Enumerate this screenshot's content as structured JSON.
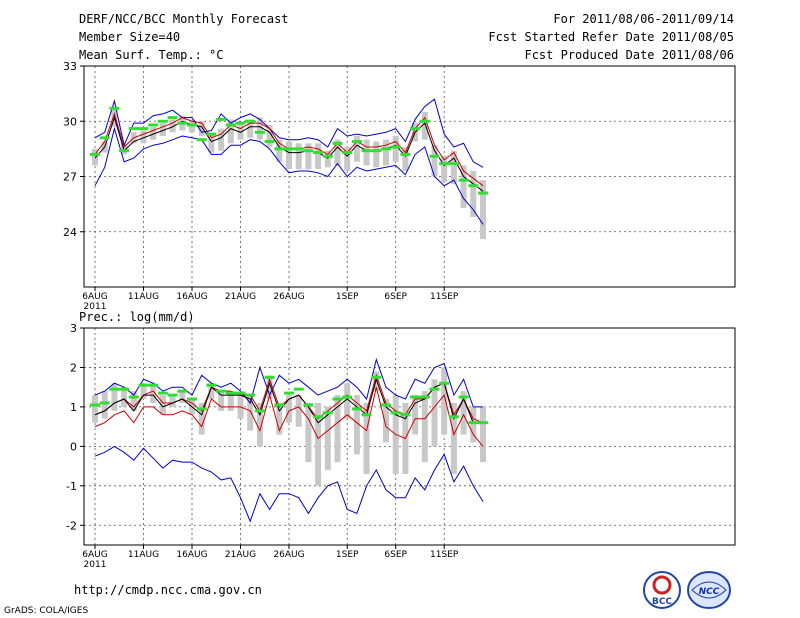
{
  "header": {
    "title": "DERF/NCC/BCC Monthly Forecast",
    "member_size": "Member Size=40",
    "variable": "Mean Surf. Temp.: °C",
    "period": "For 2011/08/06-2011/09/14",
    "started": "Fcst Started Refer Date 2011/08/05",
    "produced": "Fcst Produced Date 2011/08/06"
  },
  "footer": {
    "url": "http://cmdp.ncc.cma.gov.cn",
    "credit": "GrADS: COLA/IGES"
  },
  "logos": {
    "bcc": "BCC",
    "ncc": "NCC"
  },
  "colors": {
    "ensemble_max_min": "#0000cc",
    "ensemble_mean": "#000000",
    "control": "#cc0000",
    "spread_bar": "#c8c8c8",
    "observation": "#33dd33"
  },
  "chart_data": [
    {
      "type": "line",
      "title": "Mean Surf. Temp.: °C",
      "xlabel": "",
      "ylabel": "",
      "ylim": [
        21,
        33
      ],
      "yticks": [
        24,
        27,
        30,
        33
      ],
      "ytick_labels": [
        "24",
        "27",
        "30",
        "33"
      ],
      "xtick_days": [
        0,
        5,
        10,
        15,
        20,
        26,
        31,
        36
      ],
      "xtick_labels": [
        "6AUG\n2011",
        "11AUG",
        "16AUG",
        "21AUG",
        "26AUG",
        "1SEP",
        "6SEP",
        "11SEP"
      ],
      "grid": true,
      "x_days": 40,
      "series": [
        {
          "name": "ensemble max",
          "values": [
            29.1,
            29.4,
            31.1,
            28.7,
            29.9,
            29.9,
            30.3,
            30.4,
            30.6,
            30.2,
            30.2,
            29.4,
            29.5,
            30.4,
            29.9,
            30.2,
            30.4,
            30.1,
            29.6,
            29.1,
            29.0,
            29.0,
            29.1,
            29.0,
            28.6,
            29.6,
            29.2,
            29.3,
            29.2,
            29.3,
            29.4,
            29.6,
            28.9,
            30.1,
            30.8,
            31.2,
            29.3,
            28.6,
            28.8,
            27.8,
            27.5
          ]
        },
        {
          "name": "ensemble mean",
          "values": [
            28.0,
            28.6,
            30.2,
            28.4,
            28.9,
            29.1,
            29.3,
            29.5,
            29.7,
            30.0,
            29.8,
            29.7,
            28.9,
            29.1,
            29.6,
            29.4,
            29.7,
            29.7,
            29.4,
            28.6,
            28.3,
            28.3,
            28.4,
            28.3,
            28.0,
            28.6,
            28.1,
            28.7,
            28.4,
            28.4,
            28.5,
            28.7,
            28.1,
            29.4,
            29.9,
            28.4,
            27.6,
            28.0,
            27.0,
            26.6,
            26.2
          ]
        },
        {
          "name": "control",
          "values": [
            28.2,
            28.9,
            30.4,
            28.6,
            29.1,
            29.3,
            29.5,
            29.7,
            29.9,
            30.2,
            30.0,
            29.9,
            29.1,
            29.3,
            29.8,
            29.6,
            29.9,
            29.9,
            29.6,
            28.8,
            28.5,
            28.5,
            28.6,
            28.5,
            28.2,
            28.8,
            28.3,
            28.9,
            28.6,
            28.6,
            28.7,
            28.9,
            28.3,
            29.6,
            30.2,
            28.7,
            27.9,
            28.3,
            27.3,
            26.9,
            26.5
          ]
        },
        {
          "name": "ensemble min",
          "values": [
            26.5,
            27.5,
            29.6,
            27.8,
            28.0,
            28.5,
            28.7,
            28.8,
            29.0,
            29.2,
            29.1,
            29.0,
            28.2,
            28.2,
            28.7,
            28.7,
            29.0,
            28.9,
            28.5,
            27.8,
            27.2,
            27.3,
            27.3,
            27.2,
            27.0,
            27.7,
            27.0,
            27.5,
            27.3,
            27.4,
            27.5,
            27.6,
            27.1,
            28.2,
            28.6,
            27.0,
            26.5,
            26.8,
            25.8,
            25.2,
            24.4
          ]
        },
        {
          "name": "spread bar low",
          "values": [
            27.6,
            28.3,
            29.7,
            28.2,
            28.8,
            28.8,
            29.0,
            29.2,
            29.4,
            29.5,
            29.4,
            29.2,
            28.3,
            28.4,
            28.8,
            29.0,
            29.1,
            29.0,
            28.6,
            27.8,
            27.4,
            27.4,
            27.4,
            27.4,
            27.5,
            27.6,
            27.3,
            27.8,
            27.6,
            27.5,
            27.6,
            27.8,
            27.3,
            28.9,
            29.0,
            27.0,
            26.7,
            26.6,
            25.3,
            24.8,
            23.6
          ]
        },
        {
          "name": "spread bar high",
          "values": [
            28.5,
            28.9,
            30.8,
            28.8,
            29.4,
            29.5,
            29.7,
            29.9,
            30.1,
            30.3,
            30.1,
            30.0,
            29.3,
            29.6,
            30.1,
            29.9,
            30.1,
            30.2,
            29.8,
            29.0,
            28.9,
            28.8,
            28.8,
            28.8,
            28.4,
            29.0,
            28.6,
            29.2,
            29.0,
            28.9,
            29.0,
            29.2,
            28.6,
            29.9,
            30.5,
            28.7,
            28.1,
            28.4,
            27.6,
            27.3,
            26.8
          ]
        },
        {
          "name": "observation",
          "values": [
            28.2,
            29.1,
            30.7,
            28.4,
            29.6,
            29.6,
            29.8,
            30.0,
            30.2,
            29.9,
            29.8,
            29.0,
            29.3,
            30.1,
            29.8,
            29.9,
            30.0,
            29.4,
            28.9,
            28.5,
            28.5,
            28.5,
            28.4,
            28.3,
            28.1,
            28.8,
            28.3,
            28.9,
            28.4,
            28.4,
            28.5,
            28.6,
            28.2,
            29.6,
            30.0,
            28.1,
            27.7,
            27.7,
            26.8,
            26.5,
            26.1
          ]
        }
      ]
    },
    {
      "type": "line",
      "title": "Prec.: log(mm/d)",
      "xlabel": "",
      "ylabel": "",
      "ylim": [
        -2.5,
        3
      ],
      "yticks": [
        -2,
        -1,
        0,
        1,
        2,
        3
      ],
      "ytick_labels": [
        "-2",
        "-1",
        "0",
        "1",
        "2",
        "3"
      ],
      "xtick_days": [
        0,
        5,
        10,
        15,
        20,
        26,
        31,
        36
      ],
      "xtick_labels": [
        "6AUG\n2011",
        "11AUG",
        "16AUG",
        "21AUG",
        "26AUG",
        "1SEP",
        "6SEP",
        "11SEP"
      ],
      "grid": true,
      "x_days": 40,
      "series": [
        {
          "name": "ensemble max",
          "values": [
            1.3,
            1.4,
            1.6,
            1.5,
            1.3,
            1.7,
            1.6,
            1.4,
            1.5,
            1.5,
            1.3,
            1.8,
            1.6,
            1.5,
            1.6,
            1.4,
            1.1,
            2.0,
            1.3,
            1.8,
            1.6,
            1.7,
            1.5,
            1.3,
            1.4,
            1.5,
            1.7,
            1.5,
            1.2,
            2.2,
            1.5,
            1.3,
            1.2,
            1.7,
            1.6,
            2.0,
            2.1,
            1.3,
            1.7,
            1.0,
            1.0
          ]
        },
        {
          "name": "ensemble mean",
          "values": [
            0.8,
            0.9,
            1.1,
            1.2,
            0.9,
            1.3,
            1.3,
            1.0,
            1.1,
            1.2,
            1.0,
            0.8,
            1.5,
            1.3,
            1.3,
            1.3,
            1.2,
            0.8,
            1.6,
            0.9,
            1.2,
            1.3,
            1.0,
            0.6,
            0.8,
            1.0,
            1.2,
            1.0,
            0.8,
            1.7,
            1.0,
            0.8,
            0.7,
            1.1,
            1.2,
            1.5,
            1.6,
            0.7,
            1.2,
            0.6,
            0.6
          ]
        },
        {
          "name": "control",
          "values": [
            0.8,
            0.9,
            1.1,
            1.2,
            1.0,
            1.3,
            1.4,
            1.1,
            1.1,
            1.2,
            1.1,
            0.9,
            1.5,
            1.4,
            1.4,
            1.3,
            1.3,
            0.9,
            1.7,
            1.0,
            1.2,
            1.3,
            1.0,
            0.7,
            0.9,
            1.1,
            1.3,
            1.1,
            0.9,
            1.8,
            1.1,
            0.9,
            0.8,
            1.2,
            1.2,
            1.5,
            1.6,
            0.8,
            1.2,
            0.7,
            0.6
          ]
        },
        {
          "name": "control (red)",
          "values": [
            0.5,
            0.6,
            0.8,
            0.9,
            0.6,
            1.0,
            1.0,
            0.8,
            0.8,
            0.9,
            0.8,
            0.5,
            1.2,
            1.0,
            1.0,
            1.0,
            0.9,
            0.4,
            1.3,
            0.4,
            0.9,
            1.0,
            0.7,
            0.2,
            0.4,
            0.6,
            0.8,
            0.6,
            0.4,
            1.5,
            0.5,
            0.3,
            0.2,
            0.7,
            0.7,
            1.0,
            1.3,
            0.3,
            0.8,
            0.3,
            0.0
          ]
        },
        {
          "name": "ensemble min",
          "values": [
            -0.25,
            -0.15,
            0.0,
            -0.15,
            -0.35,
            -0.05,
            -0.3,
            -0.55,
            -0.35,
            -0.4,
            -0.4,
            -0.55,
            -0.65,
            -0.85,
            -0.8,
            -1.3,
            -1.9,
            -1.2,
            -1.6,
            -1.2,
            -1.2,
            -1.3,
            -1.7,
            -1.3,
            -1.0,
            -0.9,
            -1.6,
            -1.7,
            -1.0,
            -0.6,
            -1.1,
            -1.3,
            -1.3,
            -0.8,
            -1.1,
            -0.6,
            -0.2,
            -0.9,
            -0.5,
            -1.0,
            -1.4
          ]
        },
        {
          "name": "spread bar low",
          "values": [
            0.6,
            0.7,
            0.9,
            1.0,
            0.9,
            1.2,
            1.1,
            0.8,
            1.0,
            1.1,
            0.8,
            0.3,
            1.2,
            0.9,
            0.9,
            0.7,
            0.4,
            0.0,
            1.2,
            0.3,
            0.6,
            0.5,
            -0.4,
            -1.0,
            -0.6,
            -0.4,
            0.7,
            -0.2,
            -0.7,
            1.4,
            0.1,
            -0.7,
            -0.7,
            0.3,
            -0.4,
            0.0,
            0.3,
            -0.7,
            0.3,
            0.1,
            -0.4
          ]
        },
        {
          "name": "spread bar high",
          "values": [
            1.3,
            1.4,
            1.6,
            1.5,
            1.4,
            1.6,
            1.6,
            1.3,
            1.3,
            1.4,
            1.2,
            1.1,
            1.6,
            1.4,
            1.4,
            1.3,
            1.3,
            1.1,
            1.8,
            1.1,
            1.3,
            1.3,
            1.1,
            1.1,
            1.0,
            1.3,
            1.6,
            1.3,
            1.1,
            1.9,
            1.2,
            1.3,
            1.1,
            1.3,
            1.4,
            1.7,
            2.0,
            1.1,
            1.4,
            1.0,
            1.0
          ]
        },
        {
          "name": "observation",
          "values": [
            1.05,
            1.1,
            1.45,
            1.45,
            1.25,
            1.55,
            1.55,
            1.35,
            1.3,
            1.4,
            1.2,
            0.95,
            1.55,
            1.4,
            1.35,
            1.35,
            1.3,
            0.9,
            1.75,
            1.05,
            1.35,
            1.45,
            1.05,
            0.75,
            0.85,
            1.2,
            1.25,
            0.95,
            0.8,
            1.75,
            1.05,
            0.85,
            0.8,
            1.25,
            1.25,
            1.45,
            1.6,
            0.75,
            1.25,
            0.6,
            0.6
          ]
        }
      ]
    },
    {
      "type": "label",
      "panel_label": "Prec.: log(mm/d)"
    }
  ]
}
